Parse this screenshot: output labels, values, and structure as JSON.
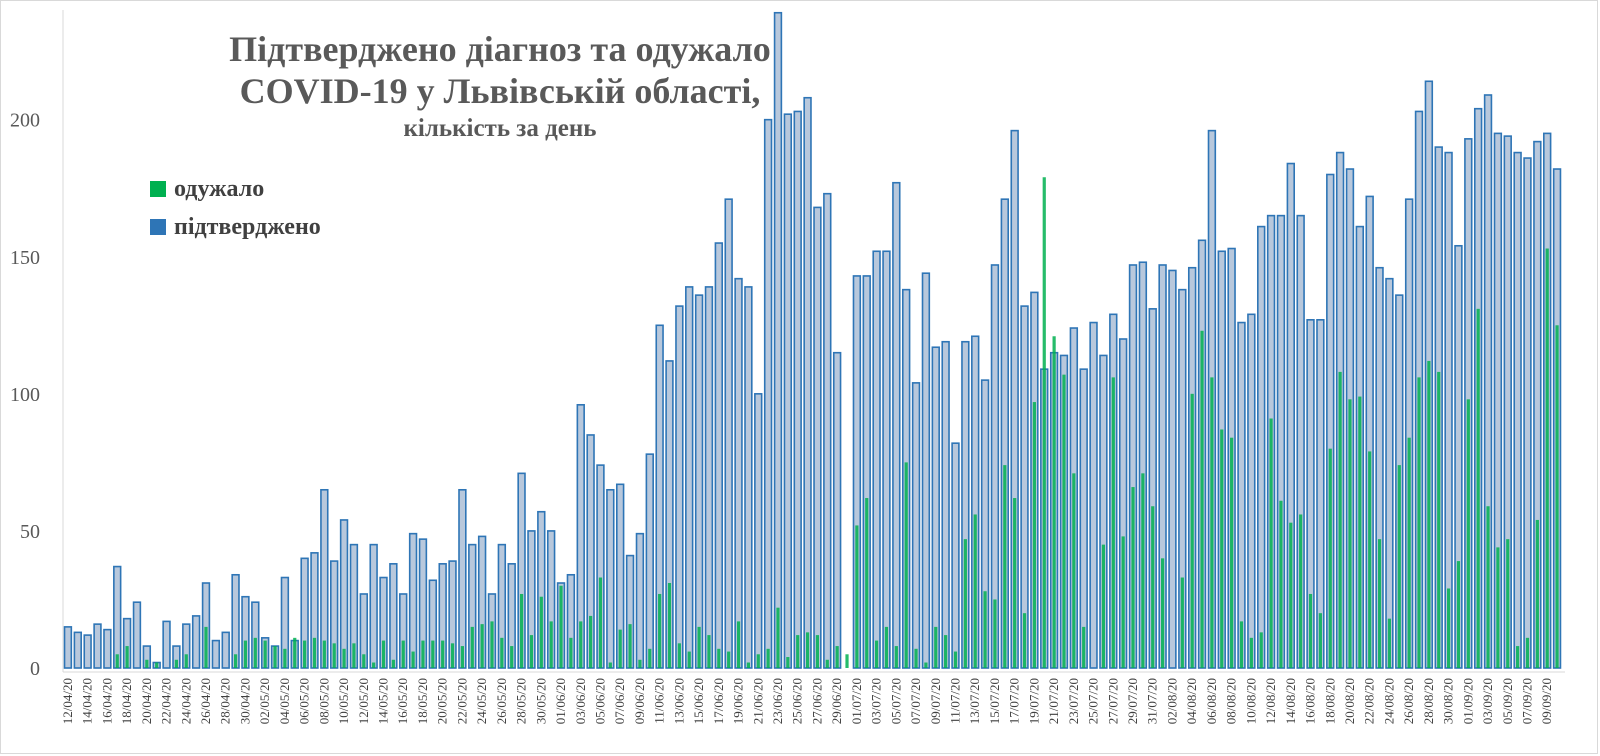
{
  "chart_data": {
    "type": "bar",
    "title": "Підтверджено діагноз та одужало",
    "title_line2": "COVID-19 у Львівській області,",
    "subtitle": "кількість за день",
    "xlabel": "",
    "ylabel": "",
    "ylim": [
      0,
      240
    ],
    "yticks": [
      0,
      50,
      100,
      150,
      200
    ],
    "grid": false,
    "legend_position": "left",
    "start_date": "2020-04-12",
    "categories": [
      "12/04/20",
      "13/04/20",
      "14/04/20",
      "15/04/20",
      "16/04/20",
      "17/04/20",
      "18/04/20",
      "19/04/20",
      "20/04/20",
      "21/04/20",
      "22/04/20",
      "23/04/20",
      "24/04/20",
      "25/04/20",
      "26/04/20",
      "27/04/20",
      "28/04/20",
      "29/04/20",
      "30/04/20",
      "01/05/20",
      "02/05/20",
      "03/05/20",
      "04/05/20",
      "05/05/20",
      "06/05/20",
      "07/05/20",
      "08/05/20",
      "09/05/20",
      "10/05/20",
      "11/05/20",
      "12/05/20",
      "13/05/20",
      "14/05/20",
      "15/05/20",
      "16/05/20",
      "17/05/20",
      "18/05/20",
      "19/05/20",
      "20/05/20",
      "21/05/20",
      "22/05/20",
      "23/05/20",
      "24/05/20",
      "25/05/20",
      "26/05/20",
      "27/05/20",
      "28/05/20",
      "29/05/20",
      "30/05/20",
      "31/05/20",
      "01/06/20",
      "02/06/20",
      "03/06/20",
      "04/06/20",
      "05/06/20",
      "06/06/20",
      "07/06/20",
      "08/06/20",
      "09/06/20",
      "10/06/20",
      "11/06/20",
      "12/06/20",
      "13/06/20",
      "14/06/20",
      "15/06/20",
      "16/06/20",
      "17/06/20",
      "18/06/20",
      "19/06/20",
      "20/06/20",
      "21/06/20",
      "22/06/20",
      "23/06/20",
      "24/06/20",
      "25/06/20",
      "26/06/20",
      "27/06/20",
      "28/06/20",
      "29/06/20",
      "30/06/20",
      "01/07/20",
      "02/07/20",
      "03/07/20",
      "04/07/20",
      "05/07/20",
      "06/07/20",
      "07/07/20",
      "08/07/20",
      "09/07/20",
      "10/07/20",
      "11/07/20",
      "12/07/20",
      "13/07/20",
      "14/07/20",
      "15/07/20",
      "16/07/20",
      "17/07/20",
      "18/07/20",
      "19/07/20",
      "20/07/20",
      "21/07/20",
      "22/07/20",
      "23/07/20",
      "24/07/20",
      "25/07/20",
      "26/07/20",
      "27/07/20",
      "28/07/20",
      "29/07/20",
      "30/07/20",
      "31/07/20",
      "01/08/20",
      "02/08/20",
      "03/08/20",
      "04/08/20",
      "05/08/20",
      "06/08/20",
      "07/08/20",
      "08/08/20",
      "09/08/20",
      "10/08/20",
      "11/08/20",
      "12/08/20",
      "13/08/20",
      "14/08/20",
      "15/08/20",
      "16/08/20",
      "17/08/20",
      "18/08/20",
      "19/08/20",
      "20/08/20",
      "21/08/20",
      "22/08/20",
      "23/08/20",
      "24/08/20",
      "25/08/20",
      "26/08/20",
      "27/08/20",
      "28/08/20",
      "29/08/20",
      "30/08/20",
      "31/08/20",
      "01/09/20",
      "02/09/20",
      "03/09/20",
      "04/09/20",
      "05/09/20",
      "06/09/20",
      "07/09/20",
      "08/09/20",
      "09/09/20",
      "10/09/20"
    ],
    "series": [
      {
        "name": "одужало",
        "color": "#00b050",
        "values": [
          0,
          0,
          0,
          0,
          0,
          5,
          8,
          0,
          3,
          2,
          0,
          3,
          5,
          0,
          15,
          0,
          0,
          5,
          10,
          11,
          10,
          8,
          7,
          11,
          10,
          11,
          10,
          9,
          7,
          9,
          5,
          2,
          10,
          3,
          10,
          6,
          10,
          10,
          10,
          9,
          8,
          15,
          16,
          17,
          11,
          8,
          27,
          12,
          26,
          17,
          30,
          11,
          17,
          19,
          33,
          2,
          14,
          16,
          3,
          7,
          27,
          31,
          9,
          6,
          15,
          12,
          7,
          6,
          17,
          2,
          5,
          7,
          22,
          4,
          12,
          13,
          12,
          3,
          8,
          5,
          52,
          62,
          10,
          15,
          8,
          75,
          7,
          2,
          15,
          12,
          6,
          47,
          56,
          28,
          25,
          74,
          62,
          20,
          97,
          179,
          121,
          107,
          71,
          15,
          0,
          45,
          106,
          48,
          66,
          71,
          59,
          40,
          0,
          33,
          100,
          123,
          106,
          87,
          84,
          17,
          11,
          13,
          91,
          61,
          53,
          56,
          27,
          20,
          80,
          108,
          98,
          99,
          79,
          47,
          18,
          74,
          84,
          106,
          112,
          108,
          29,
          39,
          98,
          131,
          59,
          44,
          47,
          8,
          11,
          54,
          153,
          125
        ]
      },
      {
        "name": "підтверджено",
        "color": "#2e75b6",
        "values": [
          15,
          13,
          12,
          16,
          14,
          37,
          18,
          24,
          8,
          2,
          17,
          8,
          16,
          19,
          31,
          10,
          13,
          34,
          26,
          24,
          11,
          8,
          33,
          10,
          40,
          42,
          65,
          39,
          54,
          45,
          27,
          45,
          33,
          38,
          27,
          49,
          47,
          32,
          38,
          39,
          65,
          45,
          48,
          27,
          45,
          38,
          71,
          50,
          57,
          50,
          31,
          34,
          96,
          85,
          74,
          65,
          67,
          41,
          49,
          78,
          125,
          112,
          132,
          139,
          136,
          139,
          155,
          171,
          142,
          139,
          100,
          200,
          239,
          202,
          203,
          208,
          168,
          173,
          115,
          0,
          143,
          143,
          152,
          152,
          177,
          138,
          104,
          144,
          117,
          119,
          82,
          119,
          121,
          105,
          147,
          171,
          196,
          132,
          137,
          109,
          115,
          114,
          124,
          109,
          126,
          114,
          129,
          120,
          147,
          148,
          131,
          147,
          145,
          138,
          146,
          156,
          196,
          152,
          153,
          126,
          129,
          161,
          165,
          165,
          184,
          165,
          127,
          127,
          180,
          188,
          182,
          161,
          172,
          146,
          142,
          136,
          171,
          203,
          214,
          190,
          188,
          154,
          193,
          204,
          209,
          195,
          194,
          188,
          186,
          192,
          195,
          182
        ]
      }
    ]
  }
}
